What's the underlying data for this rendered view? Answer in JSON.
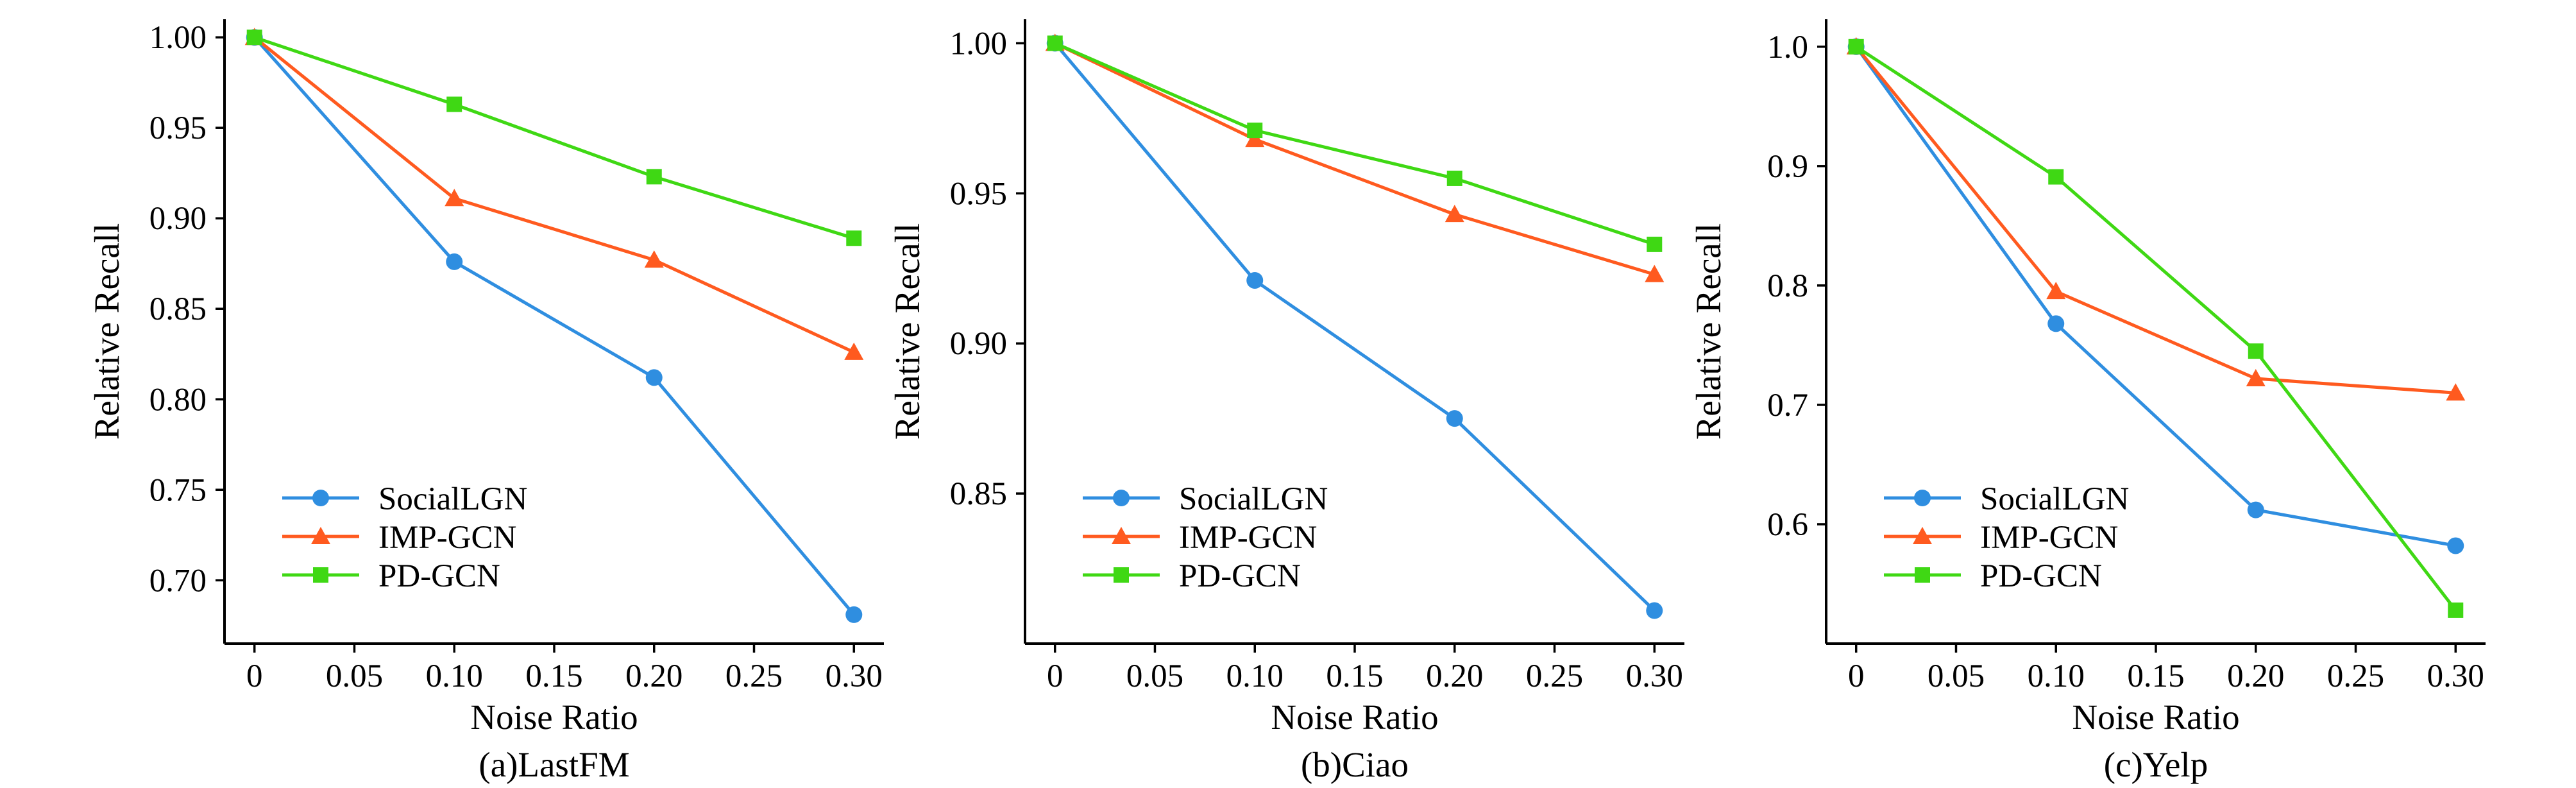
{
  "colors": {
    "SocialLGN": "#2f8ee0",
    "IMP-GCN": "#ff5a1f",
    "PD-GCN": "#3fd814"
  },
  "markers": {
    "SocialLGN": "circle",
    "IMP-GCN": "triangle",
    "PD-GCN": "square"
  },
  "chart_data": [
    {
      "type": "line",
      "caption": "(a)LastFM",
      "xlabel": "Noise Ratio",
      "ylabel": "Relative Recall",
      "x": [
        0,
        0.1,
        0.2,
        0.3
      ],
      "xlim": [
        -0.015,
        0.315
      ],
      "ylim": [
        0.665,
        1.01
      ],
      "xticks": [
        0,
        0.05,
        0.1,
        0.15,
        0.2,
        0.25,
        0.3
      ],
      "xtick_labels": [
        "0",
        "0.05",
        "0.10",
        "0.15",
        "0.20",
        "0.25",
        "0.30"
      ],
      "yticks": [
        0.7,
        0.75,
        0.8,
        0.85,
        0.9,
        0.95,
        1.0
      ],
      "ytick_labels": [
        "0.70",
        "0.75",
        "0.80",
        "0.85",
        "0.90",
        "0.95",
        "1.00"
      ],
      "legend_position": "lower-left",
      "series": [
        {
          "name": "SocialLGN",
          "values": [
            1.0,
            0.876,
            0.812,
            0.681
          ]
        },
        {
          "name": "IMP-GCN",
          "values": [
            1.0,
            0.911,
            0.877,
            0.826
          ]
        },
        {
          "name": "PD-GCN",
          "values": [
            1.0,
            0.963,
            0.923,
            0.889
          ]
        }
      ]
    },
    {
      "type": "line",
      "caption": "(b)Ciao",
      "xlabel": "Noise Ratio",
      "ylabel": "Relative Recall",
      "x": [
        0,
        0.1,
        0.2,
        0.3
      ],
      "xlim": [
        -0.015,
        0.315
      ],
      "ylim": [
        0.8,
        1.008
      ],
      "xticks": [
        0,
        0.05,
        0.1,
        0.15,
        0.2,
        0.25,
        0.3
      ],
      "xtick_labels": [
        "0",
        "0.05",
        "0.10",
        "0.15",
        "0.20",
        "0.25",
        "0.30"
      ],
      "yticks": [
        0.85,
        0.9,
        0.95,
        1.0
      ],
      "ytick_labels": [
        "0.85",
        "0.90",
        "0.95",
        "1.00"
      ],
      "legend_position": "lower-left",
      "series": [
        {
          "name": "SocialLGN",
          "values": [
            1.0,
            0.921,
            0.875,
            0.811
          ]
        },
        {
          "name": "IMP-GCN",
          "values": [
            1.0,
            0.968,
            0.943,
            0.923
          ]
        },
        {
          "name": "PD-GCN",
          "values": [
            1.0,
            0.971,
            0.955,
            0.933
          ]
        }
      ]
    },
    {
      "type": "line",
      "caption": "(c)Yelp",
      "xlabel": "Noise Ratio",
      "ylabel": "Relative Recall",
      "x": [
        0,
        0.1,
        0.2,
        0.3
      ],
      "xlim": [
        -0.015,
        0.315
      ],
      "ylim": [
        0.5,
        1.023
      ],
      "xticks": [
        0,
        0.05,
        0.1,
        0.15,
        0.2,
        0.25,
        0.3
      ],
      "xtick_labels": [
        "0",
        "0.05",
        "0.10",
        "0.15",
        "0.20",
        "0.25",
        "0.30"
      ],
      "yticks": [
        0.6,
        0.7,
        0.8,
        0.9,
        1.0
      ],
      "ytick_labels": [
        "0.6",
        "0.7",
        "0.8",
        "0.9",
        "1.0"
      ],
      "legend_position": "lower-left",
      "series": [
        {
          "name": "SocialLGN",
          "values": [
            1.0,
            0.768,
            0.612,
            0.582
          ]
        },
        {
          "name": "IMP-GCN",
          "values": [
            1.0,
            0.795,
            0.722,
            0.71
          ]
        },
        {
          "name": "PD-GCN",
          "values": [
            1.0,
            0.891,
            0.745,
            0.528
          ]
        }
      ]
    }
  ]
}
